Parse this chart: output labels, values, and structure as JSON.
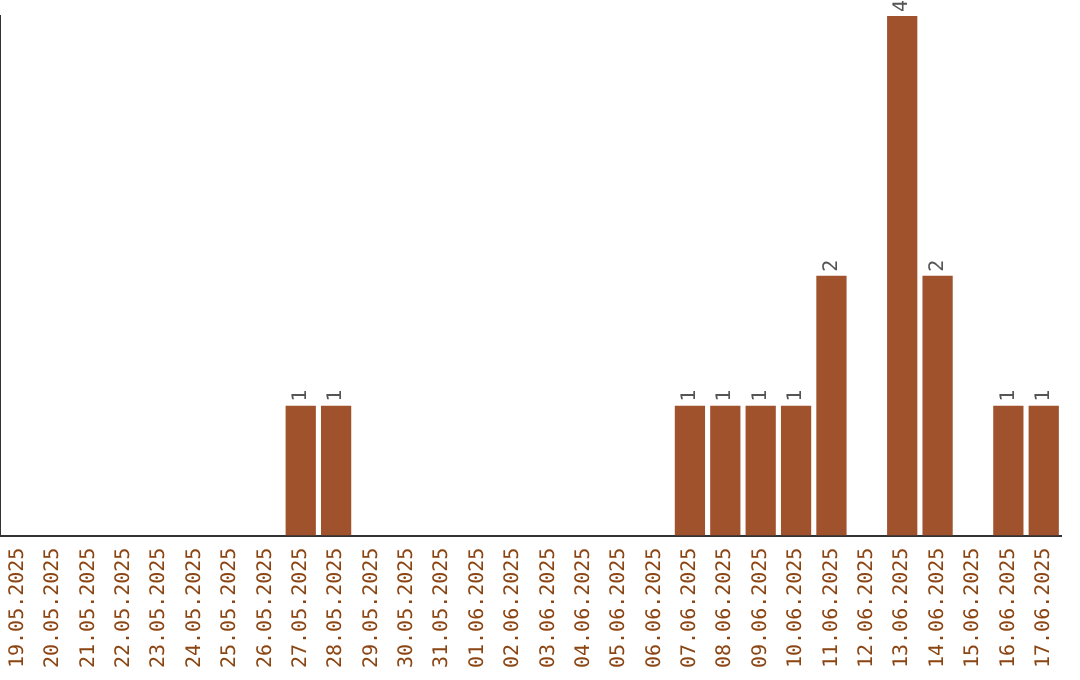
{
  "chart_data": {
    "type": "bar",
    "categories": [
      "19.05.2025",
      "20.05.2025",
      "21.05.2025",
      "22.05.2025",
      "23.05.2025",
      "24.05.2025",
      "25.05.2025",
      "26.05.2025",
      "27.05.2025",
      "28.05.2025",
      "29.05.2025",
      "30.05.2025",
      "31.05.2025",
      "01.06.2025",
      "02.06.2025",
      "03.06.2025",
      "04.06.2025",
      "05.06.2025",
      "06.06.2025",
      "07.06.2025",
      "08.06.2025",
      "09.06.2025",
      "10.06.2025",
      "11.06.2025",
      "12.06.2025",
      "13.06.2025",
      "14.06.2025",
      "15.06.2025",
      "16.06.2025",
      "17.06.2025"
    ],
    "values": [
      0,
      0,
      0,
      0,
      0,
      0,
      0,
      0,
      1,
      1,
      0,
      0,
      0,
      0,
      0,
      0,
      0,
      0,
      0,
      1,
      1,
      1,
      1,
      2,
      0,
      4,
      2,
      0,
      1,
      1
    ],
    "value_labels": [
      null,
      null,
      null,
      null,
      null,
      null,
      null,
      null,
      "1",
      "1",
      null,
      null,
      null,
      null,
      null,
      null,
      null,
      null,
      null,
      "1",
      "1",
      "1",
      "1",
      "2",
      null,
      "4",
      "2",
      null,
      "1",
      "1"
    ],
    "color": "#a0522d",
    "grid": false,
    "legend": false,
    "tick_labels": "x"
  }
}
